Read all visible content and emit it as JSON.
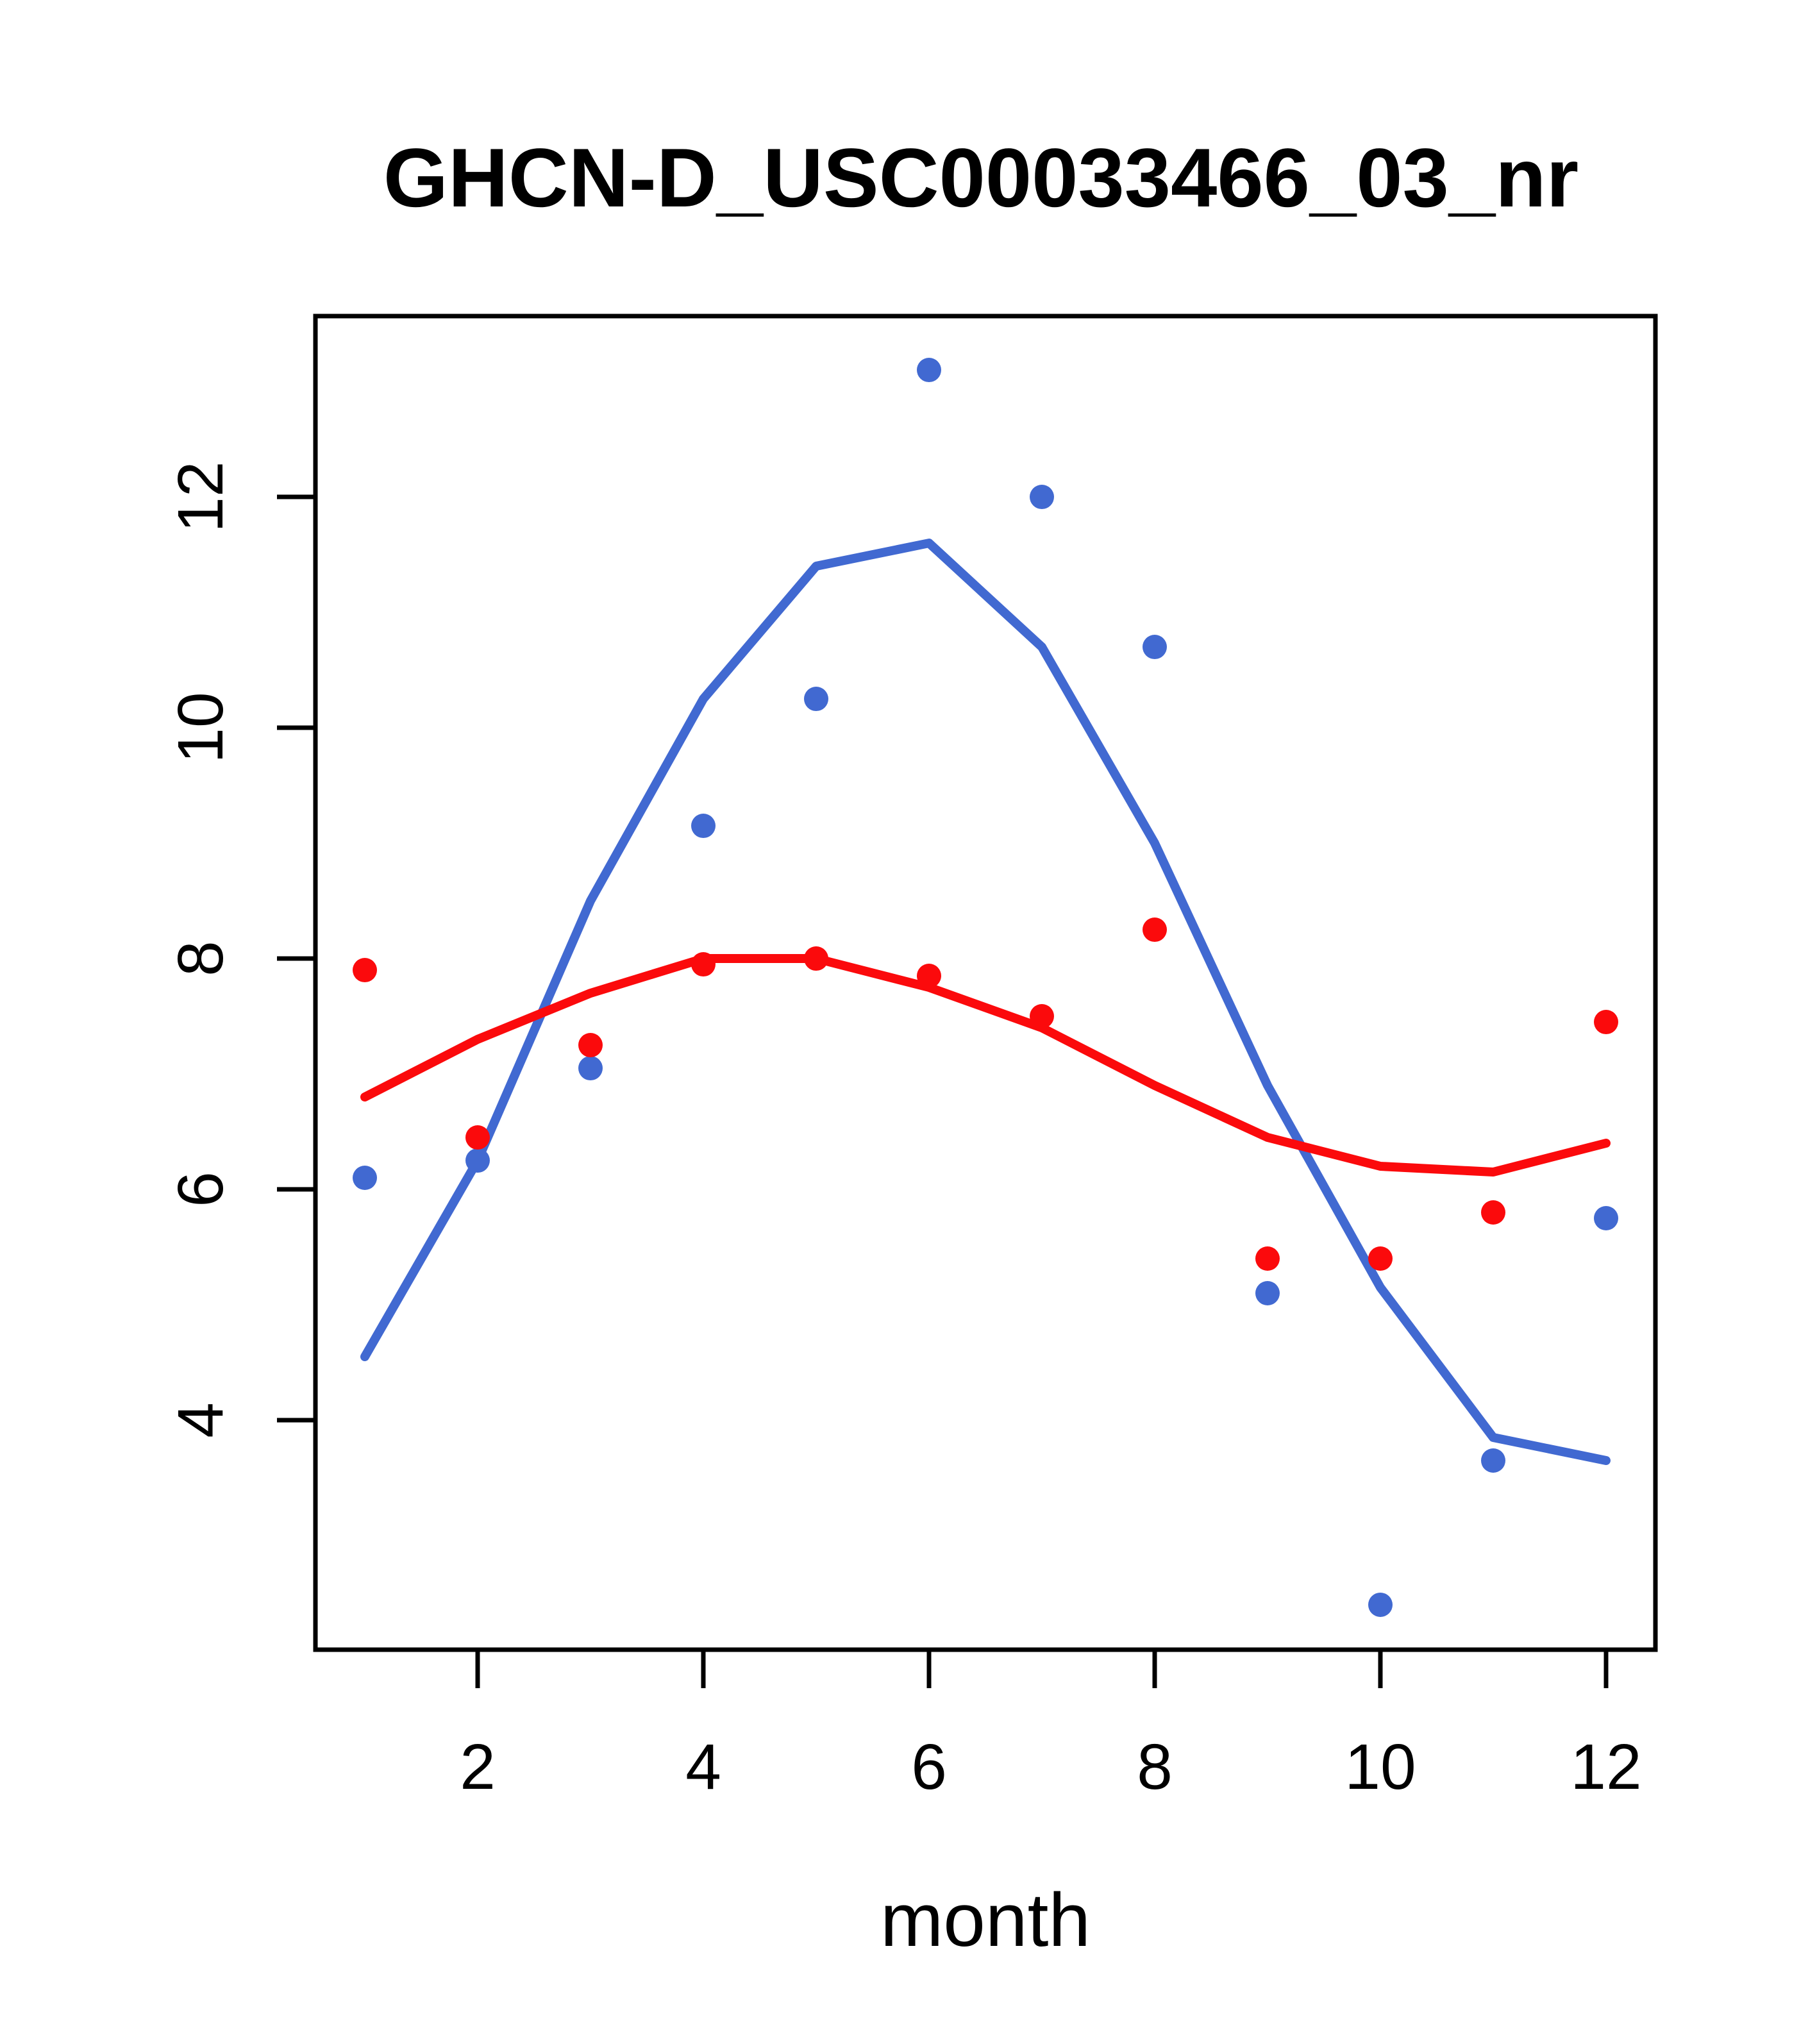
{
  "title": "GHCN-D_USC00033466_03_nr",
  "chart_data": {
    "type": "scatter",
    "title": "GHCN-D_USC00033466_03_nr",
    "xlabel": "month",
    "ylabel": "",
    "xlim": [
      0.5625,
      12.4375
    ],
    "ylim": [
      2.011,
      13.567
    ],
    "x_ticks": [
      2,
      4,
      6,
      8,
      10,
      12
    ],
    "y_ticks": [
      4,
      6,
      8,
      10,
      12
    ],
    "grid": false,
    "legend": "none",
    "x": [
      1,
      2,
      3,
      4,
      5,
      6,
      7,
      8,
      9,
      10,
      11,
      12
    ],
    "series": [
      {
        "name": "blue-monthly-values",
        "kind": "points",
        "color": "#4169d1",
        "values": [
          6.1,
          6.25,
          7.05,
          9.15,
          10.25,
          13.1,
          12.0,
          10.7,
          5.1,
          2.4,
          3.65,
          5.75
        ]
      },
      {
        "name": "red-monthly-values",
        "kind": "points",
        "color": "#fb0a0c",
        "values": [
          7.9,
          6.45,
          7.25,
          7.95,
          8.0,
          7.85,
          7.5,
          8.25,
          5.4,
          5.4,
          5.8,
          7.45
        ]
      },
      {
        "name": "blue-smooth-line",
        "kind": "line",
        "color": "#4169d1",
        "values": [
          4.55,
          6.25,
          8.5,
          10.25,
          11.4,
          11.6,
          10.7,
          9.0,
          6.9,
          5.15,
          3.85,
          3.65
        ]
      },
      {
        "name": "red-smooth-line",
        "kind": "line",
        "color": "#fb0a0c",
        "values": [
          6.8,
          7.3,
          7.7,
          8.0,
          8.0,
          7.75,
          7.4,
          6.9,
          6.45,
          6.2,
          6.15,
          6.4
        ]
      }
    ]
  },
  "colors": {
    "axis": "#000000",
    "background": "#ffffff"
  }
}
